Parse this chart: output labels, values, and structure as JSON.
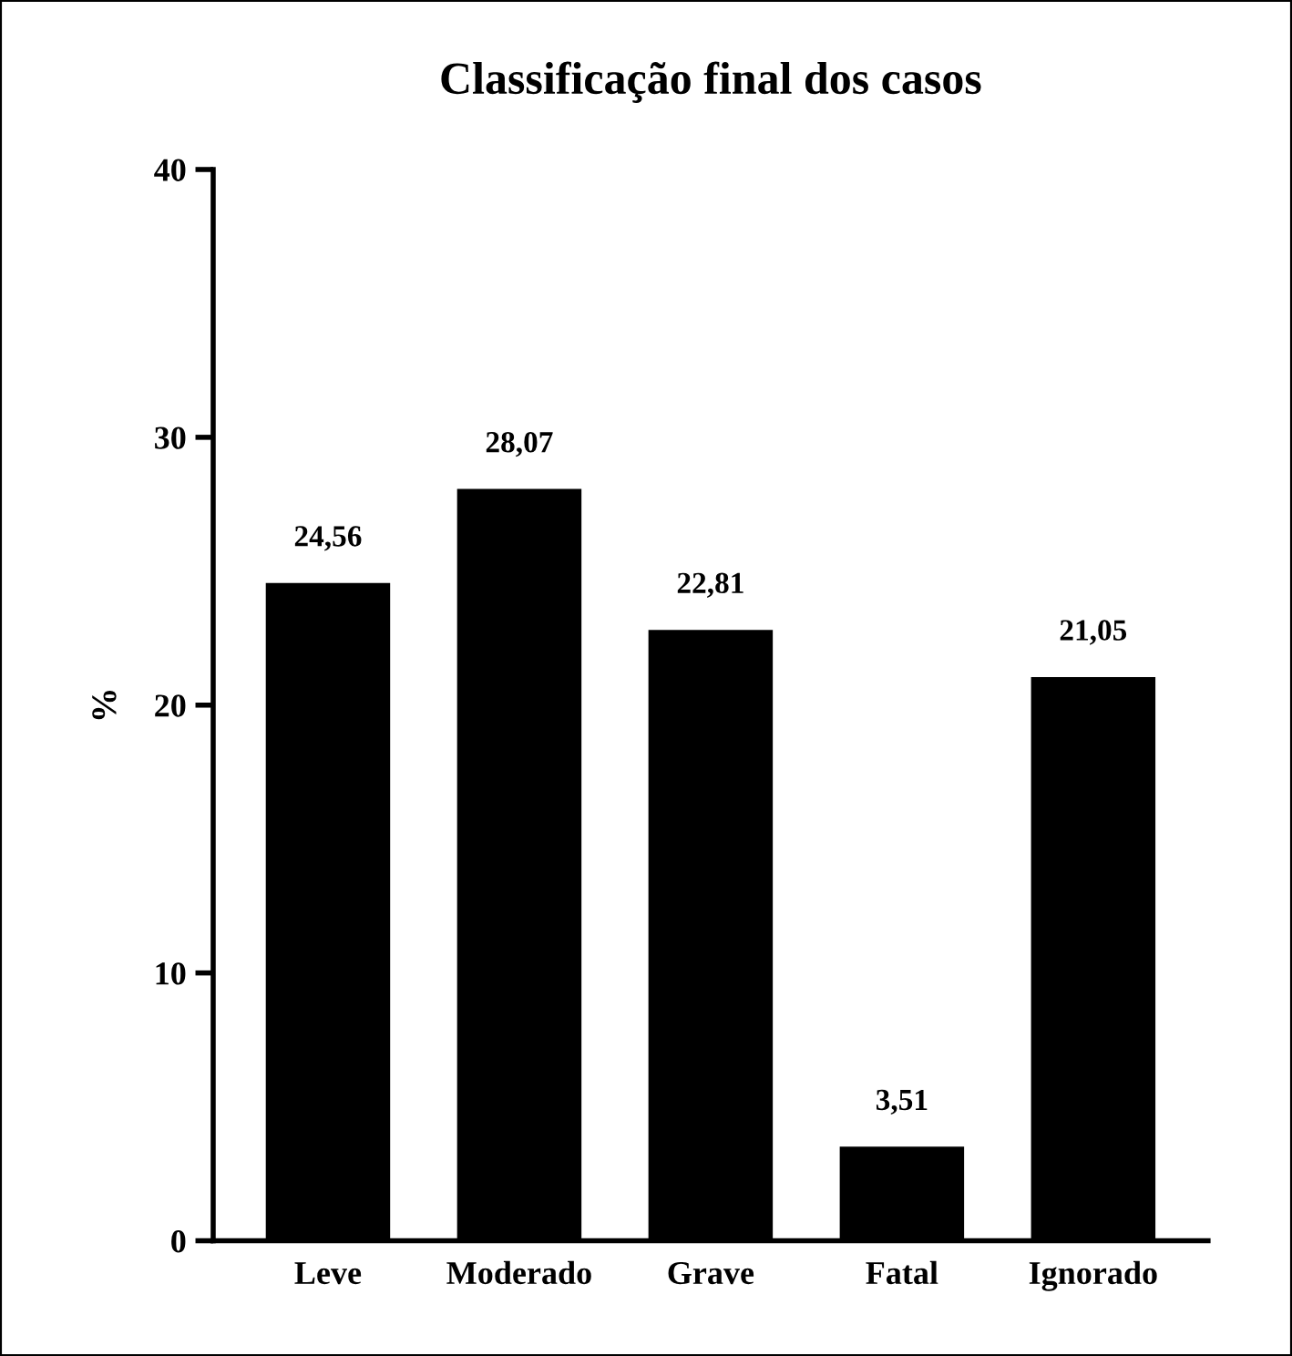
{
  "chart_data": {
    "type": "bar",
    "title": "Classificação final dos casos",
    "ylabel": "%",
    "categories": [
      "Leve",
      "Moderado",
      "Grave",
      "Fatal",
      "Ignorado"
    ],
    "values": [
      24.56,
      28.07,
      22.81,
      3.51,
      21.05
    ],
    "value_labels": [
      "24,56",
      "28,07",
      "22,81",
      "3,51",
      "21,05"
    ],
    "color": "#000000",
    "ylim": [
      0,
      40
    ],
    "yticks": [
      0,
      10,
      20,
      30,
      40
    ],
    "grid": false,
    "legend": false
  }
}
